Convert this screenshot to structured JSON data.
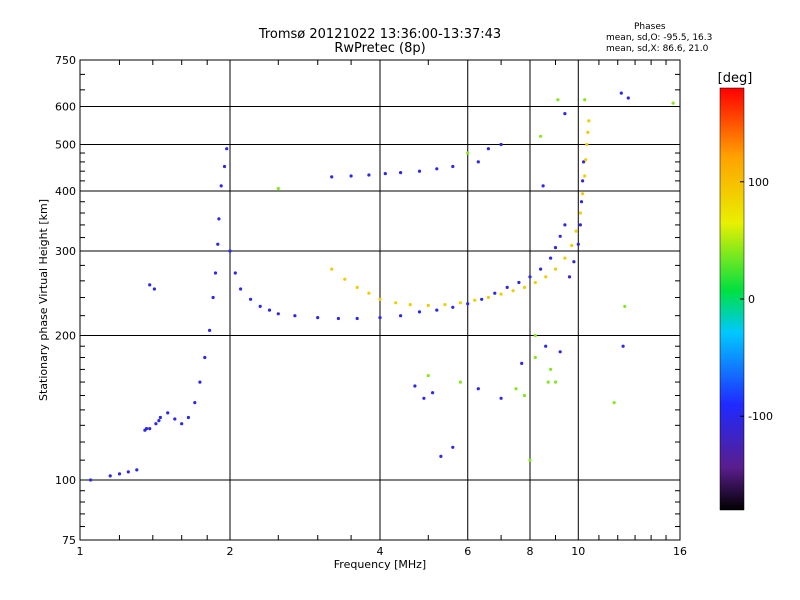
{
  "chart_data": {
    "type": "scatter",
    "title": "Tromsø 20121022 13:36:00-13:37:43",
    "subtitle": "RwPretec (8p)",
    "xlabel": "Frequency [MHz]",
    "ylabel": "Stationary phase Virtual Height [km]",
    "x_scale": "log",
    "y_scale": "log",
    "xlim": [
      1,
      16
    ],
    "ylim": [
      75,
      750
    ],
    "x_ticks": [
      1,
      2,
      4,
      6,
      8,
      10,
      16
    ],
    "y_ticks": [
      75,
      100,
      200,
      300,
      400,
      500,
      600,
      750
    ],
    "grid": true,
    "phase_info": {
      "header": "Phases",
      "line_o": "mean, sd,O: -95.5, 16.3",
      "line_x": "mean, sd,X:  86.6, 21.0"
    },
    "colorbar": {
      "label": "[deg]",
      "range": [
        -180,
        180
      ],
      "ticks": [
        100,
        0,
        -100
      ]
    },
    "series": [
      {
        "mode": "O",
        "phase_deg": -100,
        "x": [
          1.05,
          1.15,
          1.2,
          1.25,
          1.3,
          1.35,
          1.36,
          1.38,
          1.42,
          1.44,
          1.45,
          1.5,
          1.55,
          1.6,
          1.65,
          1.7,
          1.74,
          1.78,
          1.82,
          1.85,
          1.87,
          1.89,
          1.9,
          1.92,
          1.95,
          1.97,
          2.0,
          2.05,
          2.1,
          2.2,
          2.3,
          2.4,
          2.5,
          2.7,
          3.0,
          3.3,
          3.6,
          4.0,
          4.4,
          4.8,
          5.2,
          5.6,
          6.0,
          6.4,
          6.8,
          7.2,
          7.6,
          8.0,
          8.4,
          8.8,
          9.0,
          9.2,
          9.4,
          1.38,
          1.41,
          3.2,
          3.5,
          3.8,
          4.1,
          4.4,
          4.8,
          5.2,
          5.6,
          6.3,
          6.6,
          7.0,
          5.3,
          5.6,
          4.7,
          4.9,
          5.1,
          6.3,
          7.0,
          8.6,
          9.2,
          9.4,
          8.5,
          12.2,
          12.6,
          12.3,
          7.7
        ],
        "y": [
          100,
          102,
          103,
          104,
          105,
          127,
          128,
          128,
          131,
          133,
          135,
          138,
          134,
          131,
          135,
          145,
          160,
          180,
          205,
          240,
          270,
          310,
          350,
          410,
          450,
          490,
          300,
          270,
          250,
          238,
          230,
          226,
          222,
          220,
          218,
          217,
          217,
          218,
          220,
          224,
          226,
          229,
          233,
          238,
          245,
          252,
          258,
          265,
          275,
          290,
          305,
          322,
          340,
          255,
          250,
          428,
          430,
          432,
          435,
          437,
          440,
          445,
          450,
          460,
          490,
          500,
          112,
          117,
          157,
          148,
          152,
          155,
          148,
          190,
          185,
          580,
          410,
          640,
          625,
          190,
          175
        ]
      },
      {
        "mode": "O-cusp",
        "phase_deg": -110,
        "x": [
          9.6,
          9.8,
          10.0,
          10.1,
          10.15,
          10.2,
          10.25
        ],
        "y": [
          265,
          285,
          310,
          340,
          380,
          420,
          460
        ]
      },
      {
        "mode": "X",
        "phase_deg": 90,
        "x": [
          3.2,
          3.4,
          3.6,
          3.8,
          4.0,
          4.3,
          4.6,
          5.0,
          5.4,
          5.8,
          6.2,
          6.6,
          7.0,
          7.4,
          7.8,
          8.2,
          8.6,
          9.0,
          9.4,
          9.7,
          9.9,
          10.1,
          10.2,
          10.3,
          10.35,
          10.4,
          10.45,
          10.5
        ],
        "y": [
          275,
          262,
          252,
          245,
          238,
          234,
          232,
          231,
          232,
          234,
          237,
          240,
          244,
          248,
          252,
          258,
          265,
          275,
          290,
          308,
          330,
          360,
          395,
          430,
          465,
          500,
          530,
          560
        ]
      },
      {
        "mode": "noise",
        "phase_deg": 40,
        "x": [
          7.5,
          7.8,
          8.2,
          8.7,
          9.1,
          2.5,
          5.0,
          5.8,
          8.0,
          8.2,
          8.4,
          8.8,
          9.0,
          10.3,
          15.5,
          12.4,
          11.8,
          6.0
        ],
        "y": [
          155,
          150,
          180,
          160,
          620,
          405,
          165,
          160,
          110,
          200,
          520,
          170,
          160,
          620,
          610,
          230,
          145,
          480
        ]
      }
    ]
  }
}
